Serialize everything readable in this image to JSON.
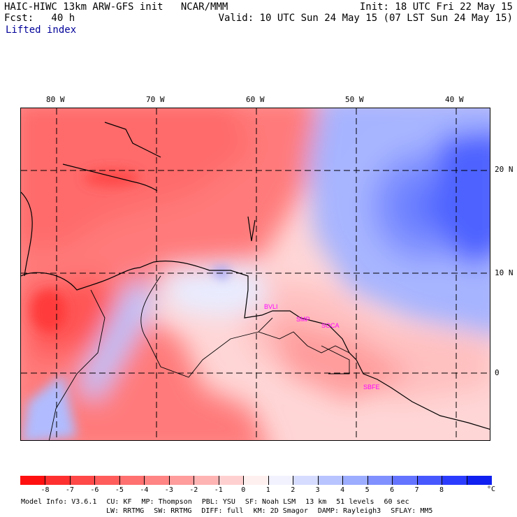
{
  "header": {
    "line1_left": "HAIC-HIWC 13km ARW-GFS init   NCAR/MMM",
    "line1_right": "Init: 18 UTC Fri 22 May 15",
    "line2_left": "Fcst:   40 h",
    "line2_right": "Valid: 10 UTC Sun 24 May 15 (07 LST Sun 24 May 15)",
    "field": "Lifted index"
  },
  "map": {
    "lon_labels": [
      "80 W",
      "70 W",
      "60 W",
      "50 W",
      "40 W"
    ],
    "lat_labels": [
      "20 N",
      "10 N",
      "0"
    ],
    "stations": [
      "BVLI",
      "SMP",
      "SOCA",
      "SBFE"
    ]
  },
  "colorbar": {
    "ticks": [
      "-8",
      "-7",
      "-6",
      "-5",
      "-4",
      "-3",
      "-2",
      "-1",
      "0",
      "1",
      "2",
      "3",
      "4",
      "5",
      "6",
      "7",
      "8"
    ],
    "unit": "°C",
    "colors": [
      "#ff1010",
      "#ff3030",
      "#ff4848",
      "#ff5c5c",
      "#ff7070",
      "#ff8484",
      "#ff9c9c",
      "#ffb4b4",
      "#ffd0d0",
      "#fff0f0",
      "#f2f2ff",
      "#d6dcff",
      "#b8c4ff",
      "#9cacff",
      "#8090ff",
      "#6474ff",
      "#4858ff",
      "#2c3cff",
      "#1020f0"
    ]
  },
  "footer": {
    "line1": [
      "Model Info: V3.6.1",
      "CU: KF",
      "MP: Thompson",
      "PBL: YSU",
      "SF: Noah LSM",
      "13 km",
      "51 levels",
      "60 sec"
    ],
    "line2": [
      "LW: RRTMG",
      "SW: RRTMG",
      "DIFF: full",
      "KM: 2D Smagor",
      "DAMP: Rayleigh3",
      "SFLAY: MM5"
    ]
  }
}
